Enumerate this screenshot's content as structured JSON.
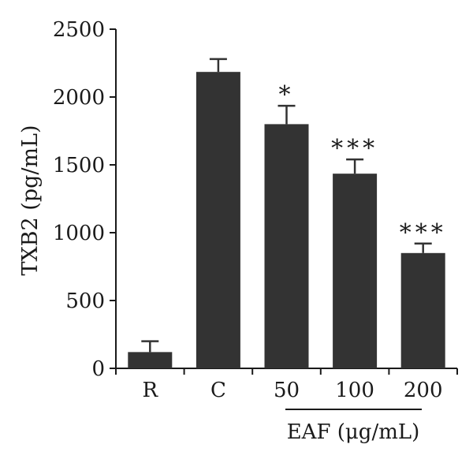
{
  "chart_data": {
    "type": "bar",
    "title": "",
    "ylabel": "TXB2 (pg/mL)",
    "xlabel": "",
    "ylim": [
      0,
      2500
    ],
    "yticks": [
      0,
      500,
      1000,
      1500,
      2000,
      2500
    ],
    "categories": [
      "R",
      "C",
      "50",
      "100",
      "200"
    ],
    "values": [
      120,
      2185,
      1800,
      1435,
      850
    ],
    "errors": [
      80,
      95,
      135,
      105,
      70
    ],
    "significance": [
      "",
      "",
      "*",
      "***",
      "***"
    ],
    "group_label": "EAF (μg/mL)",
    "grid": false,
    "bar_color": "#333333"
  }
}
